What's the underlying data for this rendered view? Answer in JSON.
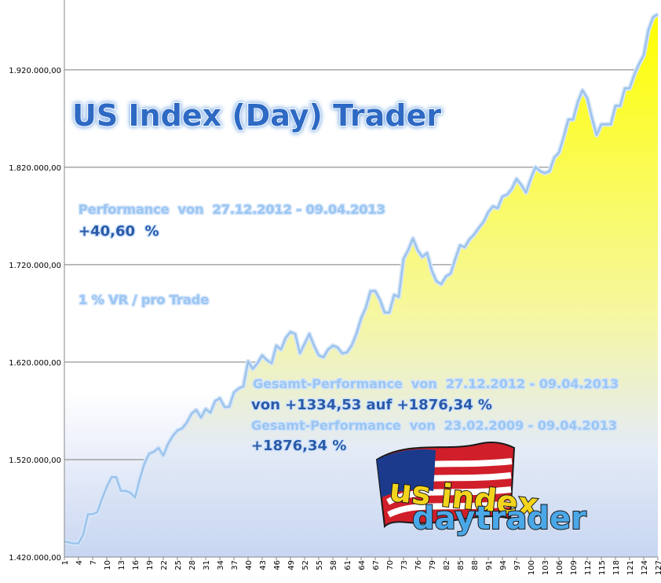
{
  "chart_data": {
    "type": "area",
    "title": "US Index (Day) Trader",
    "annotations": [
      "Performance  von  27.12.2012 - 09.04.2013",
      "+40,60  %",
      "1 % VR / pro Trade",
      "Gesamt-Performance  von  27.12.2012 - 09.04.2013",
      "von +1334,53 auf +1876,34 %",
      "Gesamt-Performance  von  23.02.2009 - 09.04.2013",
      "+1876,34 %"
    ],
    "logo": [
      "us index",
      "daytrader"
    ],
    "categories": [
      1,
      null,
      null,
      4,
      null,
      null,
      7,
      null,
      null,
      10,
      null,
      null,
      13,
      null,
      null,
      16,
      null,
      null,
      19,
      null,
      null,
      22,
      null,
      null,
      25,
      null,
      null,
      28,
      null,
      null,
      31,
      null,
      null,
      34,
      null,
      null,
      37,
      null,
      null,
      40,
      null,
      null,
      43,
      null,
      null,
      46,
      null,
      null,
      49,
      null,
      null,
      52,
      null,
      null,
      55,
      null,
      null,
      58,
      null,
      null,
      61,
      null,
      null,
      64,
      null,
      null,
      67,
      null,
      null,
      70,
      null,
      null,
      73,
      null,
      null,
      76,
      null,
      null,
      79,
      null,
      null,
      82,
      null,
      null,
      85,
      null,
      null,
      88,
      null,
      null,
      91,
      null,
      null,
      94,
      null,
      null,
      97,
      null,
      null,
      100,
      null,
      null,
      103,
      null,
      null,
      106,
      null,
      null,
      109,
      null,
      null,
      112,
      null,
      null,
      115,
      null,
      null,
      118,
      null,
      null,
      121,
      null,
      null,
      124,
      null,
      null,
      127
    ],
    "values": [
      1436000,
      1435000,
      1434000,
      1434000,
      1443000,
      1464000,
      1464000,
      1466000,
      1480000,
      1492000,
      1502000,
      1502000,
      1488000,
      1488000,
      1486000,
      1481000,
      1500000,
      1516000,
      1526000,
      1528000,
      1532000,
      1524000,
      1536000,
      1544000,
      1550000,
      1552000,
      1558000,
      1567000,
      1571000,
      1563000,
      1572000,
      1568000,
      1580000,
      1583000,
      1574000,
      1574000,
      1589000,
      1593000,
      1595000,
      1621000,
      1613000,
      1619000,
      1627000,
      1622000,
      1619000,
      1637000,
      1633000,
      1645000,
      1651000,
      1649000,
      1629000,
      1639000,
      1649000,
      1637000,
      1627000,
      1625000,
      1633000,
      1637000,
      1635000,
      1629000,
      1630000,
      1637000,
      1649000,
      1665000,
      1676000,
      1693000,
      1693000,
      1684000,
      1671000,
      1671000,
      1689000,
      1687000,
      1726000,
      1735000,
      1747000,
      1735000,
      1728000,
      1732000,
      1714000,
      1703000,
      1700000,
      1708000,
      1711000,
      1726000,
      1740000,
      1738000,
      1746000,
      1751000,
      1758000,
      1764000,
      1774000,
      1780000,
      1778000,
      1790000,
      1792000,
      1798000,
      1808000,
      1802000,
      1794000,
      1808000,
      1820000,
      1816000,
      1814000,
      1816000,
      1830000,
      1835000,
      1851000,
      1869000,
      1869000,
      1887000,
      1899000,
      1891000,
      1871000,
      1853000,
      1864000,
      1864000,
      1864000,
      1883000,
      1883000,
      1901000,
      1901000,
      1915000,
      1926000,
      1935000,
      1961000,
      1974000,
      1977000
    ],
    "color": "#9cc3ea",
    "ylim": [
      1420000,
      1990000
    ],
    "yticks": [
      {
        "value": 1420000,
        "label": "1.420.000,00"
      },
      {
        "value": 1520000,
        "label": "1.520.000,00"
      },
      {
        "value": 1620000,
        "label": "1.620.000,00"
      },
      {
        "value": 1720000,
        "label": "1.720.000,00"
      },
      {
        "value": 1820000,
        "label": "1.820.000,00"
      },
      {
        "value": 1920000,
        "label": "1.920.000,00"
      }
    ],
    "grid": true
  }
}
